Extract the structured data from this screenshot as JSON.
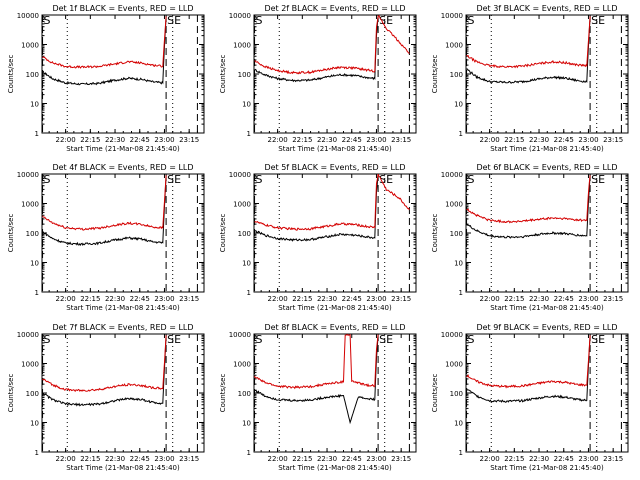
{
  "figure": {
    "title_suffix": " BLACK = Events, RED = LLD",
    "xlabel": "Start Time (21-Mar-08 21:45:40)",
    "ylabel": "Counts/sec",
    "x_tick_labels": [
      "22:00",
      "22:15",
      "22:30",
      "22:45",
      "23:00",
      "23:15"
    ],
    "y_tick_labels": [
      "1",
      "10",
      "100",
      "1000",
      "10000"
    ],
    "marker_S": "S",
    "marker_SE": "SE"
  },
  "chart_data": [
    {
      "type": "line",
      "detector": "Det 1f",
      "yscale": "log",
      "xlim": [
        "21:45:40",
        "23:24:00"
      ],
      "ylim": [
        1,
        10000
      ],
      "x_ticks": [
        "22:00",
        "22:15",
        "22:30",
        "22:45",
        "23:00",
        "23:15"
      ],
      "vlines": [
        {
          "time": "21:46",
          "style": "dashed"
        },
        {
          "time": "22:01",
          "style": "dotted"
        },
        {
          "time": "23:01",
          "style": "dashed"
        },
        {
          "time": "23:05",
          "style": "dotted"
        },
        {
          "time": "23:20",
          "style": "dashed"
        }
      ],
      "markers": [
        {
          "text": "S",
          "time": "21:46"
        },
        {
          "text": "SE",
          "time": "23:01"
        }
      ],
      "series": [
        {
          "name": "Events",
          "color": "#000000",
          "x": [
            "21:46",
            "21:52",
            "22:00",
            "22:10",
            "22:20",
            "22:30",
            "22:38",
            "22:46",
            "22:53",
            "22:59",
            "23:00",
            "23:01"
          ],
          "y": [
            120,
            70,
            50,
            45,
            48,
            62,
            72,
            66,
            54,
            50,
            900,
            9000
          ]
        },
        {
          "name": "LLD",
          "color": "#d40000",
          "x": [
            "21:46",
            "21:52",
            "22:00",
            "22:10",
            "22:20",
            "22:30",
            "22:38",
            "22:46",
            "22:53",
            "22:59",
            "23:00",
            "23:01"
          ],
          "y": [
            380,
            240,
            180,
            170,
            180,
            220,
            260,
            235,
            200,
            185,
            1500,
            9000
          ]
        }
      ]
    },
    {
      "type": "line",
      "detector": "Det 2f",
      "yscale": "log",
      "xlim": [
        "21:45:40",
        "23:24:00"
      ],
      "ylim": [
        1,
        10000
      ],
      "x_ticks": [
        "22:00",
        "22:15",
        "22:30",
        "22:45",
        "23:00",
        "23:15"
      ],
      "vlines": [
        {
          "time": "21:46",
          "style": "dashed"
        },
        {
          "time": "22:01",
          "style": "dotted"
        },
        {
          "time": "23:01",
          "style": "dashed"
        },
        {
          "time": "23:05",
          "style": "dotted"
        },
        {
          "time": "23:20",
          "style": "dashed"
        }
      ],
      "markers": [
        {
          "text": "S",
          "time": "21:46"
        },
        {
          "text": "SE",
          "time": "23:01"
        }
      ],
      "series": [
        {
          "name": "Events",
          "color": "#000000",
          "x": [
            "21:46",
            "21:52",
            "22:00",
            "22:10",
            "22:20",
            "22:30",
            "22:38",
            "22:46",
            "22:53",
            "22:59",
            "23:00",
            "23:01"
          ],
          "y": [
            140,
            95,
            70,
            60,
            62,
            80,
            95,
            90,
            78,
            70,
            2000,
            9500
          ]
        },
        {
          "name": "LLD",
          "color": "#d40000",
          "x": [
            "21:46",
            "21:52",
            "22:00",
            "22:10",
            "22:20",
            "22:30",
            "22:38",
            "22:46",
            "22:53",
            "22:59",
            "23:00",
            "23:01",
            "23:06",
            "23:14",
            "23:20"
          ],
          "y": [
            280,
            180,
            130,
            110,
            115,
            145,
            170,
            160,
            140,
            125,
            4000,
            9800,
            3500,
            1200,
            500
          ]
        }
      ]
    },
    {
      "type": "line",
      "detector": "Det 3f",
      "yscale": "log",
      "xlim": [
        "21:45:40",
        "23:24:00"
      ],
      "ylim": [
        1,
        10000
      ],
      "x_ticks": [
        "22:00",
        "22:15",
        "22:30",
        "22:45",
        "23:00",
        "23:15"
      ],
      "vlines": [
        {
          "time": "21:46",
          "style": "dashed"
        },
        {
          "time": "22:01",
          "style": "dotted"
        },
        {
          "time": "23:01",
          "style": "dashed"
        },
        {
          "time": "23:05",
          "style": "dotted"
        },
        {
          "time": "23:20",
          "style": "dashed"
        }
      ],
      "markers": [
        {
          "text": "S",
          "time": "21:46"
        },
        {
          "text": "SE",
          "time": "23:01"
        }
      ],
      "series": [
        {
          "name": "Events",
          "color": "#000000",
          "x": [
            "21:46",
            "21:52",
            "22:00",
            "22:10",
            "22:20",
            "22:30",
            "22:38",
            "22:46",
            "22:53",
            "22:59",
            "23:00",
            "23:01"
          ],
          "y": [
            150,
            80,
            55,
            52,
            55,
            68,
            78,
            72,
            60,
            55,
            900,
            9000
          ]
        },
        {
          "name": "LLD",
          "color": "#d40000",
          "x": [
            "21:46",
            "21:52",
            "22:00",
            "22:10",
            "22:20",
            "22:30",
            "22:38",
            "22:46",
            "22:53",
            "22:59",
            "23:00",
            "23:01"
          ],
          "y": [
            420,
            260,
            190,
            175,
            185,
            225,
            260,
            240,
            205,
            190,
            1400,
            9000
          ]
        }
      ]
    },
    {
      "type": "line",
      "detector": "Det 4f",
      "yscale": "log",
      "xlim": [
        "21:45:40",
        "23:24:00"
      ],
      "ylim": [
        1,
        10000
      ],
      "x_ticks": [
        "22:00",
        "22:15",
        "22:30",
        "22:45",
        "23:00",
        "23:15"
      ],
      "vlines": [
        {
          "time": "21:46",
          "style": "dashed"
        },
        {
          "time": "22:01",
          "style": "dotted"
        },
        {
          "time": "23:01",
          "style": "dashed"
        },
        {
          "time": "23:05",
          "style": "dotted"
        },
        {
          "time": "23:20",
          "style": "dashed"
        }
      ],
      "markers": [
        {
          "text": "S",
          "time": "21:46"
        },
        {
          "text": "SE",
          "time": "23:01"
        }
      ],
      "series": [
        {
          "name": "Events",
          "color": "#000000",
          "x": [
            "21:46",
            "21:52",
            "22:00",
            "22:10",
            "22:20",
            "22:30",
            "22:38",
            "22:46",
            "22:53",
            "22:59",
            "23:00",
            "23:01"
          ],
          "y": [
            110,
            65,
            45,
            42,
            45,
            58,
            68,
            62,
            50,
            47,
            800,
            9000
          ]
        },
        {
          "name": "LLD",
          "color": "#d40000",
          "x": [
            "21:46",
            "21:52",
            "22:00",
            "22:10",
            "22:20",
            "22:30",
            "22:38",
            "22:46",
            "22:53",
            "22:59",
            "23:00",
            "23:01"
          ],
          "y": [
            360,
            220,
            150,
            135,
            145,
            185,
            215,
            195,
            160,
            150,
            1200,
            9000
          ]
        }
      ]
    },
    {
      "type": "line",
      "detector": "Det 5f",
      "yscale": "log",
      "xlim": [
        "21:45:40",
        "23:24:00"
      ],
      "ylim": [
        1,
        10000
      ],
      "x_ticks": [
        "22:00",
        "22:15",
        "22:30",
        "22:45",
        "23:00",
        "23:15"
      ],
      "vlines": [
        {
          "time": "21:46",
          "style": "dashed"
        },
        {
          "time": "22:01",
          "style": "dotted"
        },
        {
          "time": "23:01",
          "style": "dashed"
        },
        {
          "time": "23:05",
          "style": "dotted"
        },
        {
          "time": "23:20",
          "style": "dashed"
        }
      ],
      "markers": [
        {
          "text": "S",
          "time": "21:46"
        },
        {
          "text": "SE",
          "time": "23:01"
        }
      ],
      "series": [
        {
          "name": "Events",
          "color": "#000000",
          "x": [
            "21:46",
            "21:52",
            "22:00",
            "22:10",
            "22:20",
            "22:30",
            "22:38",
            "22:46",
            "22:53",
            "22:59",
            "23:00",
            "23:01"
          ],
          "y": [
            120,
            85,
            65,
            58,
            60,
            75,
            90,
            85,
            75,
            68,
            2500,
            9500
          ]
        },
        {
          "name": "LLD",
          "color": "#d40000",
          "x": [
            "21:46",
            "21:52",
            "22:00",
            "22:10",
            "22:20",
            "22:30",
            "22:38",
            "22:46",
            "22:53",
            "22:59",
            "23:00",
            "23:01",
            "23:06",
            "23:14",
            "23:20"
          ],
          "y": [
            250,
            190,
            150,
            135,
            140,
            170,
            205,
            195,
            170,
            155,
            5000,
            9800,
            3000,
            1500,
            600
          ]
        }
      ]
    },
    {
      "type": "line",
      "detector": "Det 6f",
      "yscale": "log",
      "xlim": [
        "21:45:40",
        "23:24:00"
      ],
      "ylim": [
        1,
        10000
      ],
      "x_ticks": [
        "22:00",
        "22:15",
        "22:30",
        "22:45",
        "23:00",
        "23:15"
      ],
      "vlines": [
        {
          "time": "21:46",
          "style": "dashed"
        },
        {
          "time": "22:01",
          "style": "dotted"
        },
        {
          "time": "23:01",
          "style": "dashed"
        },
        {
          "time": "23:05",
          "style": "dotted"
        },
        {
          "time": "23:20",
          "style": "dashed"
        }
      ],
      "markers": [
        {
          "text": "S",
          "time": "21:46"
        },
        {
          "text": "SE",
          "time": "23:01"
        }
      ],
      "series": [
        {
          "name": "Events",
          "color": "#000000",
          "x": [
            "21:46",
            "21:52",
            "22:00",
            "22:10",
            "22:20",
            "22:30",
            "22:38",
            "22:46",
            "22:53",
            "22:59",
            "23:00",
            "23:01"
          ],
          "y": [
            200,
            120,
            80,
            72,
            75,
            90,
            100,
            95,
            85,
            80,
            1200,
            9000
          ]
        },
        {
          "name": "LLD",
          "color": "#d40000",
          "x": [
            "21:46",
            "21:52",
            "22:00",
            "22:10",
            "22:20",
            "22:30",
            "22:38",
            "22:46",
            "22:53",
            "22:59",
            "23:00",
            "23:01"
          ],
          "y": [
            650,
            400,
            270,
            240,
            250,
            290,
            320,
            305,
            280,
            265,
            2500,
            9000
          ]
        }
      ]
    },
    {
      "type": "line",
      "detector": "Det 7f",
      "yscale": "log",
      "xlim": [
        "21:45:40",
        "23:24:00"
      ],
      "ylim": [
        1,
        10000
      ],
      "x_ticks": [
        "22:00",
        "22:15",
        "22:30",
        "22:45",
        "23:00",
        "23:15"
      ],
      "vlines": [
        {
          "time": "21:46",
          "style": "dashed"
        },
        {
          "time": "22:01",
          "style": "dotted"
        },
        {
          "time": "23:01",
          "style": "dashed"
        },
        {
          "time": "23:05",
          "style": "dotted"
        },
        {
          "time": "23:20",
          "style": "dashed"
        }
      ],
      "markers": [
        {
          "text": "S",
          "time": "21:46"
        },
        {
          "text": "SE",
          "time": "23:01"
        }
      ],
      "series": [
        {
          "name": "Events",
          "color": "#000000",
          "x": [
            "21:46",
            "21:52",
            "22:00",
            "22:10",
            "22:20",
            "22:30",
            "22:38",
            "22:46",
            "22:53",
            "22:59",
            "23:00",
            "23:01"
          ],
          "y": [
            100,
            60,
            42,
            40,
            42,
            55,
            65,
            60,
            48,
            45,
            700,
            9000
          ]
        },
        {
          "name": "LLD",
          "color": "#d40000",
          "x": [
            "21:46",
            "21:52",
            "22:00",
            "22:10",
            "22:20",
            "22:30",
            "22:38",
            "22:46",
            "22:53",
            "22:59",
            "23:00",
            "23:01"
          ],
          "y": [
            300,
            190,
            130,
            120,
            130,
            165,
            195,
            180,
            150,
            140,
            1100,
            9000
          ]
        }
      ]
    },
    {
      "type": "line",
      "detector": "Det 8f",
      "yscale": "log",
      "xlim": [
        "21:45:40",
        "23:24:00"
      ],
      "ylim": [
        1,
        10000
      ],
      "x_ticks": [
        "22:00",
        "22:15",
        "22:30",
        "22:45",
        "23:00",
        "23:15"
      ],
      "vlines": [
        {
          "time": "21:46",
          "style": "dashed"
        },
        {
          "time": "22:01",
          "style": "dotted"
        },
        {
          "time": "23:01",
          "style": "dashed"
        },
        {
          "time": "23:05",
          "style": "dotted"
        },
        {
          "time": "23:20",
          "style": "dashed"
        }
      ],
      "markers": [
        {
          "text": "S",
          "time": "21:46"
        },
        {
          "text": "SE",
          "time": "23:01"
        }
      ],
      "series": [
        {
          "name": "Events",
          "color": "#000000",
          "x": [
            "21:46",
            "21:52",
            "22:00",
            "22:10",
            "22:20",
            "22:30",
            "22:38",
            "22:40",
            "22:44",
            "22:49",
            "22:53",
            "22:59",
            "23:00",
            "23:01"
          ],
          "y": [
            130,
            80,
            60,
            55,
            58,
            72,
            80,
            82,
            10,
            75,
            65,
            60,
            1500,
            9000
          ]
        },
        {
          "name": "LLD",
          "color": "#d40000",
          "x": [
            "21:46",
            "21:52",
            "22:00",
            "22:10",
            "22:20",
            "22:30",
            "22:38",
            "22:40",
            "22:41",
            "22:44",
            "22:45",
            "22:49",
            "22:53",
            "22:59",
            "23:00",
            "23:01"
          ],
          "y": [
            360,
            230,
            170,
            155,
            165,
            205,
            230,
            240,
            9500,
            9500,
            250,
            220,
            190,
            175,
            3000,
            9500
          ]
        }
      ]
    },
    {
      "type": "line",
      "detector": "Det 9f",
      "yscale": "log",
      "xlim": [
        "21:45:40",
        "23:24:00"
      ],
      "ylim": [
        1,
        10000
      ],
      "x_ticks": [
        "22:00",
        "22:15",
        "22:30",
        "22:45",
        "23:00",
        "23:15"
      ],
      "vlines": [
        {
          "time": "21:46",
          "style": "dashed"
        },
        {
          "time": "22:01",
          "style": "dotted"
        },
        {
          "time": "23:01",
          "style": "dashed"
        },
        {
          "time": "23:05",
          "style": "dotted"
        },
        {
          "time": "23:20",
          "style": "dashed"
        }
      ],
      "markers": [
        {
          "text": "S",
          "time": "21:46"
        },
        {
          "text": "SE",
          "time": "23:01"
        }
      ],
      "series": [
        {
          "name": "Events",
          "color": "#000000",
          "x": [
            "21:46",
            "21:52",
            "22:00",
            "22:10",
            "22:20",
            "22:30",
            "22:38",
            "22:46",
            "22:53",
            "22:59",
            "23:00",
            "23:01"
          ],
          "y": [
            140,
            80,
            55,
            52,
            55,
            68,
            78,
            72,
            60,
            56,
            900,
            9000
          ]
        },
        {
          "name": "LLD",
          "color": "#d40000",
          "x": [
            "21:46",
            "21:52",
            "22:00",
            "22:10",
            "22:20",
            "22:30",
            "22:38",
            "22:46",
            "22:53",
            "22:59",
            "23:00",
            "23:01"
          ],
          "y": [
            400,
            250,
            180,
            165,
            175,
            215,
            250,
            230,
            195,
            185,
            1300,
            9000
          ]
        }
      ]
    }
  ]
}
